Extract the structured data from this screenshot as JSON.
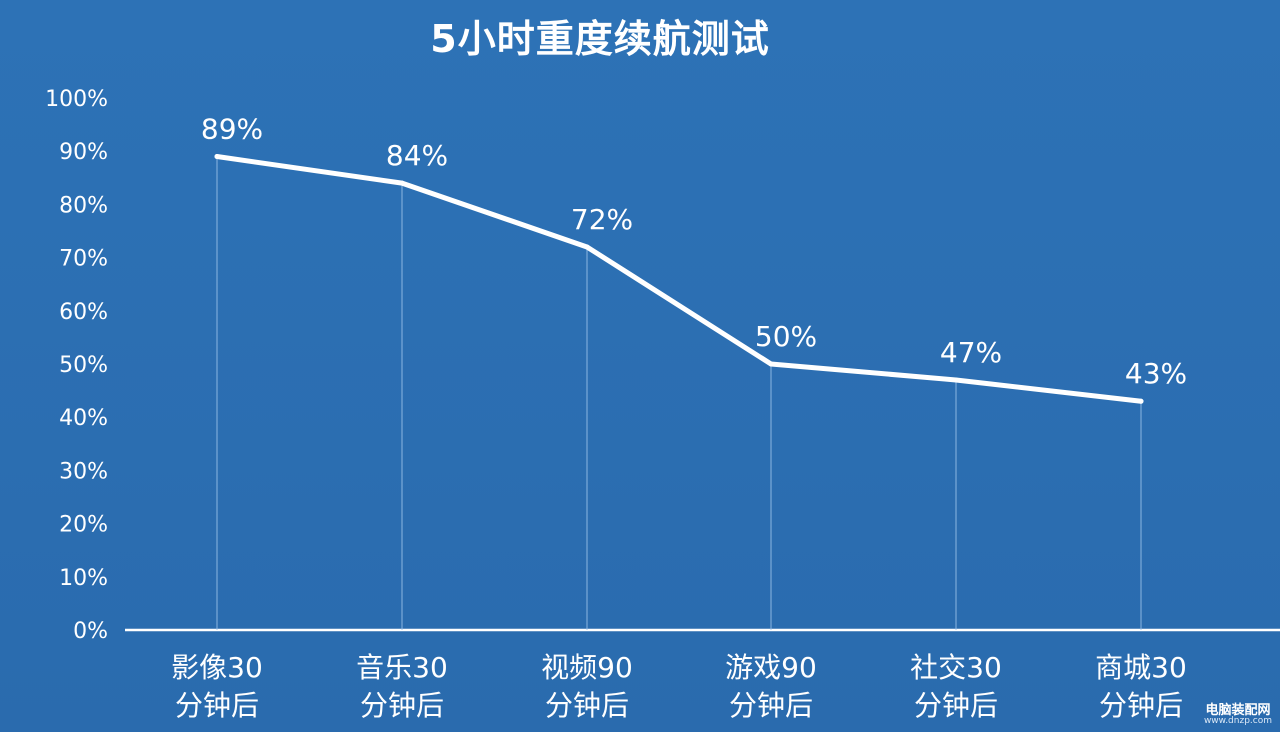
{
  "chart_data": {
    "type": "line",
    "title": "5小时重度续航测试",
    "categories": [
      "影像30分钟后",
      "音乐30分钟后",
      "视频90分钟后",
      "游戏90分钟后",
      "社交30分钟后",
      "商城30分钟后"
    ],
    "category_lines": [
      [
        "影像30",
        "分钟后"
      ],
      [
        "音乐30",
        "分钟后"
      ],
      [
        "视频90",
        "分钟后"
      ],
      [
        "游戏90",
        "分钟后"
      ],
      [
        "社交30",
        "分钟后"
      ],
      [
        "商城30",
        "分钟后"
      ]
    ],
    "values": [
      89,
      84,
      72,
      50,
      47,
      43
    ],
    "data_labels": [
      "89%",
      "84%",
      "72%",
      "50%",
      "47%",
      "43%"
    ],
    "ylim": [
      0,
      100
    ],
    "yticks": [
      0,
      10,
      20,
      30,
      40,
      50,
      60,
      70,
      80,
      90,
      100
    ],
    "ytick_labels": [
      "0%",
      "10%",
      "20%",
      "30%",
      "40%",
      "50%",
      "60%",
      "70%",
      "80%",
      "90%",
      "100%"
    ],
    "xlabel": "",
    "ylabel": "",
    "grid": false,
    "drop_lines": true,
    "colors": {
      "background": "#2b6fb3",
      "line": "#ffffff",
      "text": "#ffffff"
    }
  },
  "watermark": {
    "text": "电脑装配网",
    "url": "www.dnzp.com"
  }
}
